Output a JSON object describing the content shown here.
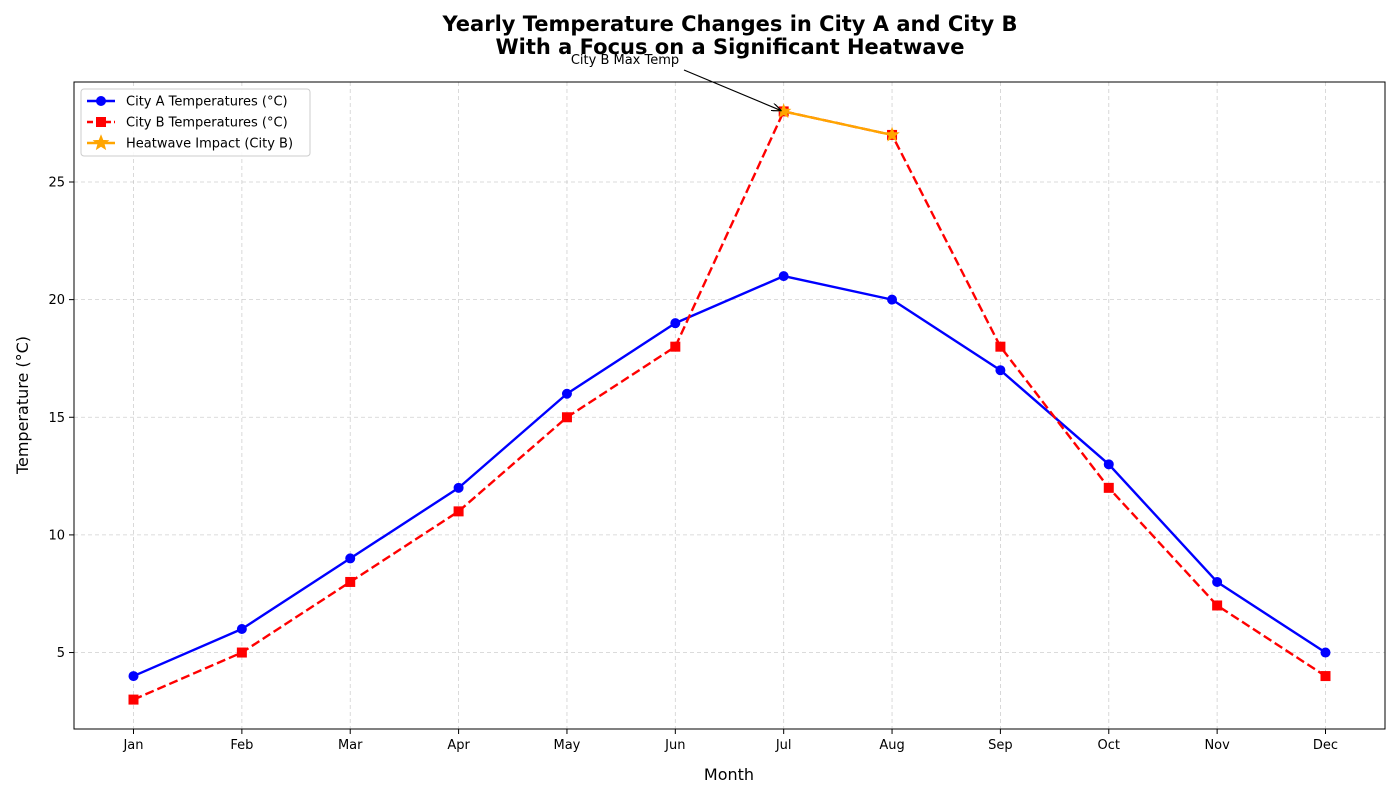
{
  "chart_data": {
    "type": "line",
    "title_line1": "Yearly Temperature Changes in City A and City B",
    "title_line2": "With a Focus on a Significant Heatwave",
    "xlabel": "Month",
    "ylabel": "Temperature (°C)",
    "categories": [
      "Jan",
      "Feb",
      "Mar",
      "Apr",
      "May",
      "Jun",
      "Jul",
      "Aug",
      "Sep",
      "Oct",
      "Nov",
      "Dec"
    ],
    "yticks": [
      5,
      10,
      15,
      20,
      25
    ],
    "ylim": [
      1.75,
      29.25
    ],
    "grid": true,
    "legend_position": "upper-left",
    "series": [
      {
        "name": "City A Temperatures (°C)",
        "values": [
          4,
          6,
          9,
          12,
          16,
          19,
          21,
          20,
          17,
          13,
          8,
          5
        ],
        "color": "#0000ff",
        "line_style": "solid",
        "marker": "circle"
      },
      {
        "name": "City B Temperatures (°C)",
        "values": [
          3,
          5,
          8,
          11,
          15,
          18,
          28,
          27,
          18,
          12,
          7,
          4
        ],
        "color": "#ff0000",
        "line_style": "dashed",
        "marker": "square"
      },
      {
        "name": "Heatwave Impact (City B)",
        "x": [
          "Jul",
          "Aug"
        ],
        "values": [
          28,
          27
        ],
        "color": "#ffa500",
        "line_style": "solid",
        "marker": "star"
      }
    ],
    "annotation": {
      "text": "City B Max Temp",
      "target_category": "Jul",
      "target_value": 28
    }
  }
}
